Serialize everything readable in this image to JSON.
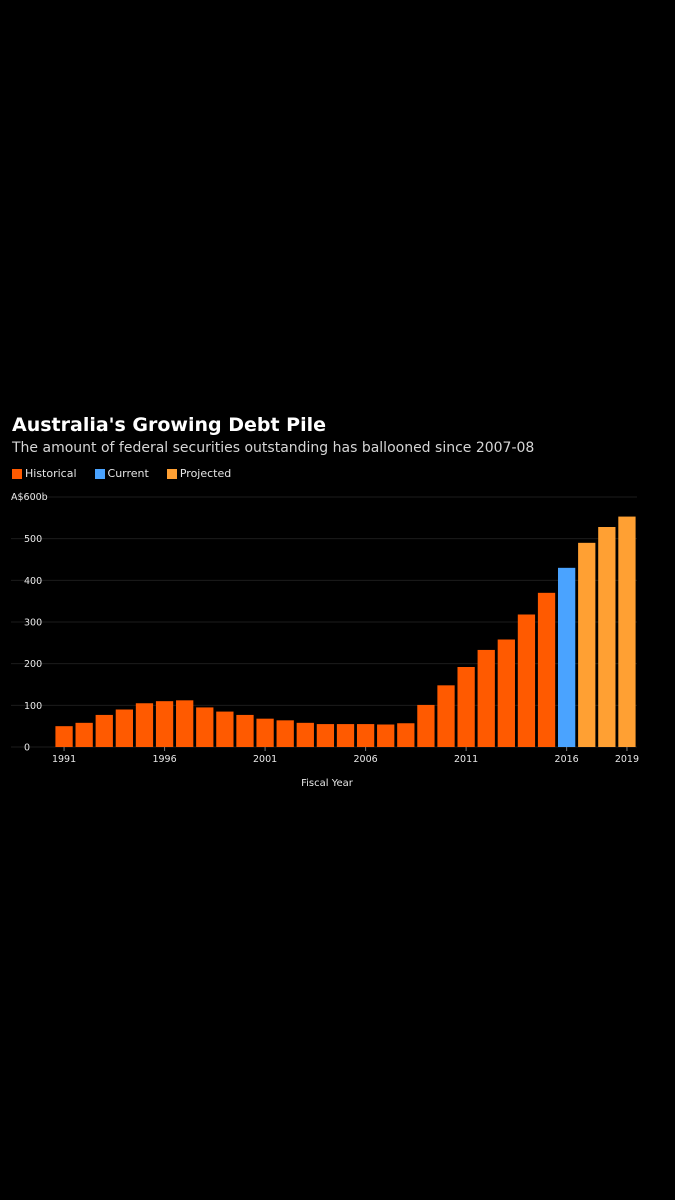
{
  "chart_data": {
    "type": "bar",
    "title": "Australia's Growing Debt Pile",
    "subtitle": "The amount of federal securities outstanding has ballooned since 2007-08",
    "xlabel": "Fiscal Year",
    "ylabel": "",
    "y_unit_label": "A$600b",
    "ylim": [
      0,
      600
    ],
    "yticks": [
      0,
      100,
      200,
      300,
      400,
      500
    ],
    "xtick_labels": [
      "1991",
      "1996",
      "2001",
      "2006",
      "2011",
      "2016",
      "2019"
    ],
    "grid": true,
    "legend_position": "top-left",
    "categories": [
      "1991",
      "1992",
      "1993",
      "1994",
      "1995",
      "1996",
      "1997",
      "1998",
      "1999",
      "2000",
      "2001",
      "2002",
      "2003",
      "2004",
      "2005",
      "2006",
      "2007",
      "2008",
      "2009",
      "2010",
      "2011",
      "2012",
      "2013",
      "2014",
      "2015",
      "2016",
      "2017",
      "2018",
      "2019"
    ],
    "values": [
      50,
      58,
      77,
      90,
      105,
      110,
      112,
      95,
      85,
      77,
      68,
      64,
      58,
      55,
      55,
      55,
      54,
      57,
      101,
      148,
      192,
      233,
      258,
      318,
      370,
      430,
      490,
      528,
      553
    ],
    "bar_groups": [
      "historical",
      "historical",
      "historical",
      "historical",
      "historical",
      "historical",
      "historical",
      "historical",
      "historical",
      "historical",
      "historical",
      "historical",
      "historical",
      "historical",
      "historical",
      "historical",
      "historical",
      "historical",
      "historical",
      "historical",
      "historical",
      "historical",
      "historical",
      "historical",
      "historical",
      "current",
      "projected",
      "projected",
      "projected"
    ],
    "series": [
      {
        "name": "Historical",
        "key": "historical",
        "color": "#ff5a00"
      },
      {
        "name": "Current",
        "key": "current",
        "color": "#4aa3ff"
      },
      {
        "name": "Projected",
        "key": "projected",
        "color": "#ffa033"
      }
    ]
  }
}
